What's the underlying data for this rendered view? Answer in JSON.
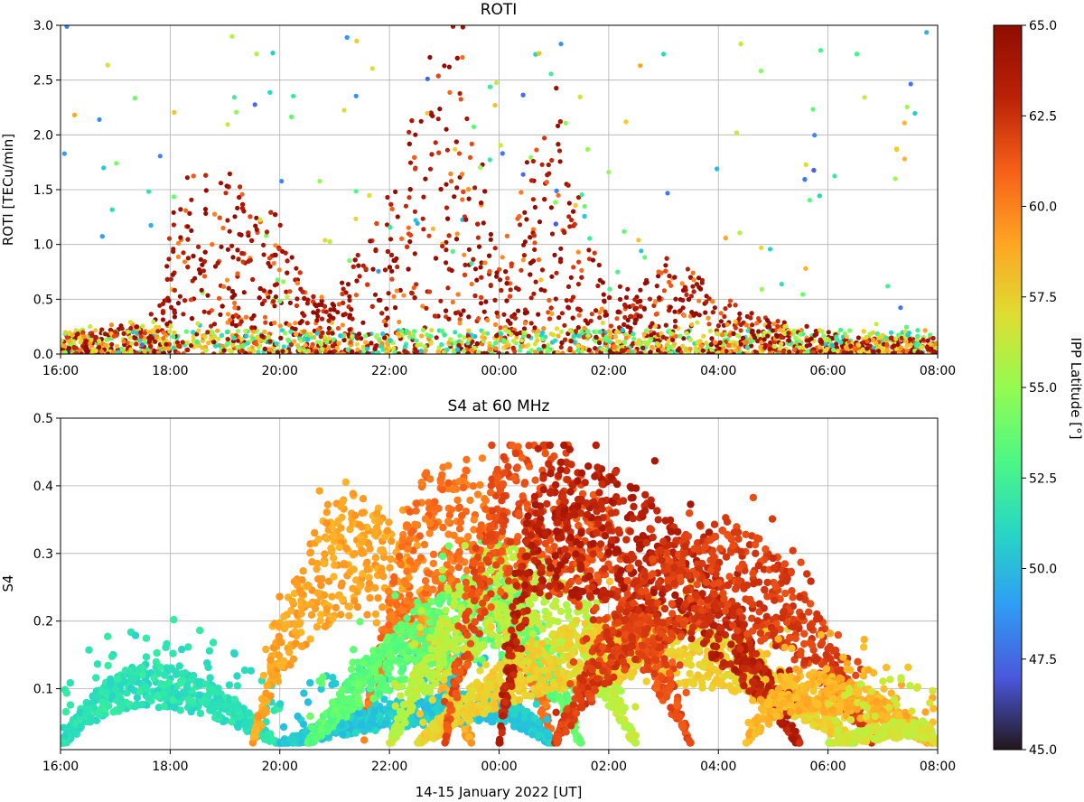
{
  "chart_data": [
    {
      "type": "scatter",
      "title": "ROTI",
      "xlabel": "",
      "ylabel": "ROTI [TECu/min]",
      "xlim": [
        "16:00",
        "08:00"
      ],
      "ylim": [
        0,
        3.0
      ],
      "x_ticks": [
        "16:00",
        "18:00",
        "20:00",
        "22:00",
        "00:00",
        "02:00",
        "04:00",
        "06:00",
        "08:00"
      ],
      "y_ticks": [
        "0.0",
        "0.5",
        "1.0",
        "1.5",
        "2.0",
        "2.5",
        "3.0"
      ],
      "grid": true,
      "color_by": "IPP Latitude [°]",
      "envelope": {
        "time_hours_since_1600": [
          0,
          1.5,
          1.9,
          2.0,
          2.5,
          3.0,
          3.5,
          4.0,
          4.5,
          5.0,
          5.5,
          6.0,
          6.5,
          7.0,
          7.3,
          7.5,
          8.0,
          8.5,
          9.0,
          9.5,
          10.0,
          10.5,
          11.0,
          11.5,
          12.0,
          12.5,
          13.0,
          13.5,
          14.0,
          14.5,
          15.0,
          15.5,
          16.0
        ],
        "dense_max_roti": [
          0.2,
          0.3,
          0.5,
          1.4,
          1.7,
          1.6,
          1.5,
          1.2,
          0.6,
          0.5,
          1.0,
          1.5,
          2.3,
          3.0,
          3.0,
          2.2,
          0.9,
          1.6,
          2.5,
          1.3,
          0.6,
          0.6,
          0.9,
          0.8,
          0.5,
          0.4,
          0.3,
          0.25,
          0.2,
          0.15,
          0.15,
          0.15,
          0.15
        ]
      }
    },
    {
      "type": "scatter",
      "title": "S4 at 60 MHz",
      "xlabel": "14-15 January 2022 [UT]",
      "ylabel": "S4",
      "xlim": [
        "16:00",
        "08:00"
      ],
      "ylim": [
        0.01,
        0.5
      ],
      "x_ticks": [
        "16:00",
        "18:00",
        "20:00",
        "22:00",
        "00:00",
        "02:00",
        "04:00",
        "06:00",
        "08:00"
      ],
      "y_ticks": [
        "0.1",
        "0.2",
        "0.3",
        "0.4",
        "0.5"
      ],
      "grid": true,
      "color_by": "IPP Latitude [°]",
      "bands": [
        {
          "latitude": 51.5,
          "start_h": 0,
          "end_h": 4,
          "peak_h": 1.5,
          "peak_s4": 0.13
        },
        {
          "latitude": 59.0,
          "start_h": 3.5,
          "end_h": 7.5,
          "peak_h": 5.3,
          "peak_s4": 0.37
        },
        {
          "latitude": 60.5,
          "start_h": 5.5,
          "end_h": 9.0,
          "peak_h": 7.0,
          "peak_s4": 0.42
        },
        {
          "latitude": 50.5,
          "start_h": 4.0,
          "end_h": 9.0,
          "peak_h": 7.8,
          "peak_s4": 0.09
        },
        {
          "latitude": 53.5,
          "start_h": 4.5,
          "end_h": 9.5,
          "peak_h": 8.0,
          "peak_s4": 0.25
        },
        {
          "latitude": 56.0,
          "start_h": 6.0,
          "end_h": 10.5,
          "peak_h": 8.3,
          "peak_s4": 0.3
        },
        {
          "latitude": 57.5,
          "start_h": 6.5,
          "end_h": 14.5,
          "peak_h": 10.5,
          "peak_s4": 0.2
        },
        {
          "latitude": 61.5,
          "start_h": 7.0,
          "end_h": 11.5,
          "peak_h": 8.4,
          "peak_s4": 0.45
        },
        {
          "latitude": 63.0,
          "start_h": 8.0,
          "end_h": 13.5,
          "peak_h": 9.0,
          "peak_s4": 0.43
        },
        {
          "latitude": 62.0,
          "start_h": 9.0,
          "end_h": 14.8,
          "peak_h": 12.0,
          "peak_s4": 0.33
        },
        {
          "latitude": 58.5,
          "start_h": 12.5,
          "end_h": 16.0,
          "peak_h": 13.5,
          "peak_s4": 0.12
        },
        {
          "latitude": 56.5,
          "start_h": 14.0,
          "end_h": 16.0,
          "peak_h": 15.7,
          "peak_s4": 0.05
        }
      ]
    }
  ],
  "colorbar": {
    "label": "IPP Latitude [°]",
    "range": [
      45.0,
      65.0
    ],
    "ticks": [
      "65.0",
      "62.5",
      "60.0",
      "57.5",
      "55.0",
      "52.5",
      "50.0",
      "47.5",
      "45.0"
    ],
    "colormap": "turbo"
  }
}
